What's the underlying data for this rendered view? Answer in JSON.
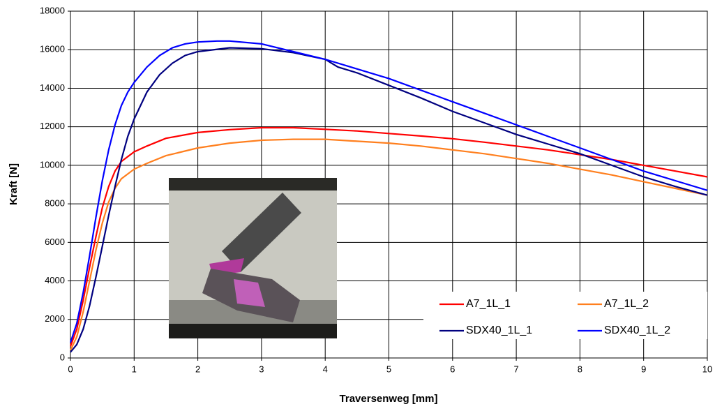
{
  "chart_data": {
    "type": "line",
    "x_label": "Traversenweg [mm]",
    "y_label": "Kraft [N]",
    "xlim": [
      0,
      10
    ],
    "xticks": [
      0,
      1,
      2,
      3,
      4,
      5,
      6,
      7,
      8,
      9,
      10
    ],
    "ylim": [
      0,
      18000
    ],
    "yticks": [
      0,
      2000,
      4000,
      6000,
      8000,
      10000,
      12000,
      14000,
      16000,
      18000
    ],
    "grid": true,
    "legend": "lower right",
    "series": [
      {
        "name": "A7_1L_1",
        "color": "#ff0000",
        "x": [
          0,
          0.1,
          0.2,
          0.3,
          0.4,
          0.5,
          0.6,
          0.7,
          0.8,
          1,
          1.2,
          1.5,
          2,
          2.5,
          3,
          3.5,
          4,
          4.5,
          5,
          5.5,
          6,
          6.5,
          7,
          7.5,
          8,
          8.5,
          9,
          9.5,
          10
        ],
        "values": [
          600,
          1500,
          3000,
          4700,
          6300,
          7800,
          8900,
          9700,
          10200,
          10700,
          11000,
          11400,
          11700,
          11850,
          11950,
          11950,
          11870,
          11780,
          11650,
          11520,
          11380,
          11200,
          11000,
          10800,
          10550,
          10300,
          10000,
          9700,
          9400
        ]
      },
      {
        "name": "A7_1L_2",
        "color": "#ff7f1e",
        "x": [
          0,
          0.1,
          0.2,
          0.3,
          0.4,
          0.5,
          0.6,
          0.7,
          0.8,
          1,
          1.2,
          1.5,
          2,
          2.5,
          3,
          3.5,
          4,
          4.5,
          5,
          5.5,
          6,
          6.5,
          7,
          7.5,
          8,
          8.5,
          9,
          9.5,
          10
        ],
        "values": [
          400,
          1100,
          2400,
          4000,
          5600,
          7000,
          8100,
          8800,
          9300,
          9800,
          10100,
          10500,
          10900,
          11150,
          11300,
          11350,
          11350,
          11250,
          11150,
          11000,
          10800,
          10600,
          10350,
          10100,
          9800,
          9500,
          9150,
          8800,
          8450
        ]
      },
      {
        "name": "SDX40_1L_1",
        "color": "#000080",
        "x": [
          0,
          0.1,
          0.2,
          0.3,
          0.4,
          0.5,
          0.6,
          0.7,
          0.8,
          0.9,
          1,
          1.2,
          1.4,
          1.6,
          1.8,
          2,
          2.5,
          3,
          3.5,
          4,
          4.1,
          4.2,
          4.5,
          5,
          5.5,
          6,
          6.5,
          7,
          7.5,
          8,
          8.5,
          9,
          9.5,
          10
        ],
        "values": [
          300,
          700,
          1500,
          2700,
          4200,
          5800,
          7400,
          8900,
          10300,
          11500,
          12400,
          13800,
          14700,
          15300,
          15700,
          15900,
          16100,
          16050,
          15850,
          15500,
          15300,
          15100,
          14800,
          14150,
          13500,
          12800,
          12200,
          11600,
          11100,
          10600,
          10000,
          9400,
          8900,
          8450
        ]
      },
      {
        "name": "SDX40_1L_2",
        "color": "#0000ff",
        "x": [
          0,
          0.1,
          0.2,
          0.3,
          0.4,
          0.5,
          0.6,
          0.7,
          0.8,
          0.9,
          1,
          1.2,
          1.4,
          1.6,
          1.8,
          2,
          2.3,
          2.5,
          3,
          3.5,
          4,
          4.5,
          5,
          5.5,
          6,
          6.5,
          7,
          7.5,
          8,
          8.5,
          9,
          9.5,
          10
        ],
        "values": [
          800,
          1800,
          3400,
          5300,
          7300,
          9200,
          10800,
          12100,
          13100,
          13800,
          14300,
          15100,
          15700,
          16100,
          16300,
          16400,
          16450,
          16450,
          16300,
          15900,
          15500,
          15000,
          14500,
          13900,
          13300,
          12700,
          12100,
          11500,
          10900,
          10300,
          9700,
          9200,
          8700
        ]
      }
    ]
  }
}
